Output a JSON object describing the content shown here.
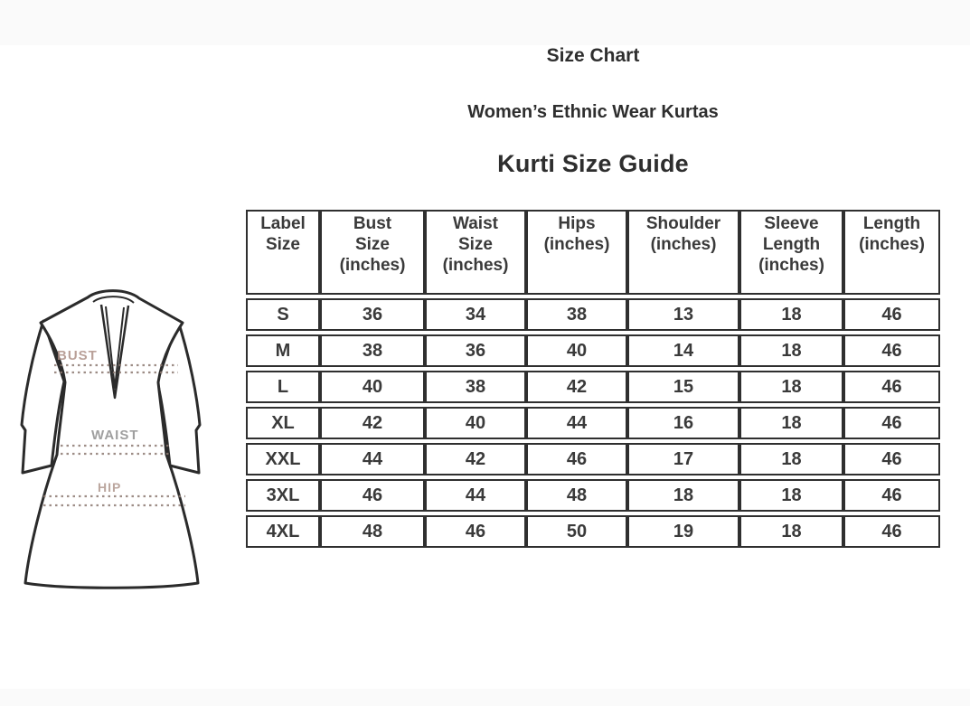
{
  "page": {
    "title": "Size Chart",
    "subtitle": "Women’s Ethnic Wear Kurtas",
    "heading": "Kurti Size Guide"
  },
  "illustration": {
    "name": "kurti-measurement-diagram",
    "labels": {
      "bust": "BUST",
      "waist": "WAIST",
      "hip": "HIP"
    },
    "label_colors": {
      "bust": "#a8897f",
      "waist": "#8f8f8f",
      "hip": "#ab9186"
    },
    "dash_line_color": "#8d7a72",
    "outline_color": "#2b2b2b"
  },
  "size_table": {
    "border_color": "#2f2f2f",
    "columns": [
      [
        "Label",
        "Size"
      ],
      [
        "Bust",
        "Size",
        "(inches)"
      ],
      [
        "Waist",
        "Size",
        "(inches)"
      ],
      [
        "Hips",
        "(inches)"
      ],
      [
        "Shoulder",
        "(inches)"
      ],
      [
        "Sleeve",
        "Length",
        "(inches)"
      ],
      [
        "Length",
        "(inches)"
      ]
    ],
    "rows": [
      [
        "S",
        "36",
        "34",
        "38",
        "13",
        "18",
        "46"
      ],
      [
        "M",
        "38",
        "36",
        "40",
        "14",
        "18",
        "46"
      ],
      [
        "L",
        "40",
        "38",
        "42",
        "15",
        "18",
        "46"
      ],
      [
        "XL",
        "42",
        "40",
        "44",
        "16",
        "18",
        "46"
      ],
      [
        "XXL",
        "44",
        "42",
        "46",
        "17",
        "18",
        "46"
      ],
      [
        "3XL",
        "46",
        "44",
        "48",
        "18",
        "18",
        "46"
      ],
      [
        "4XL",
        "48",
        "46",
        "50",
        "19",
        "18",
        "46"
      ]
    ]
  }
}
